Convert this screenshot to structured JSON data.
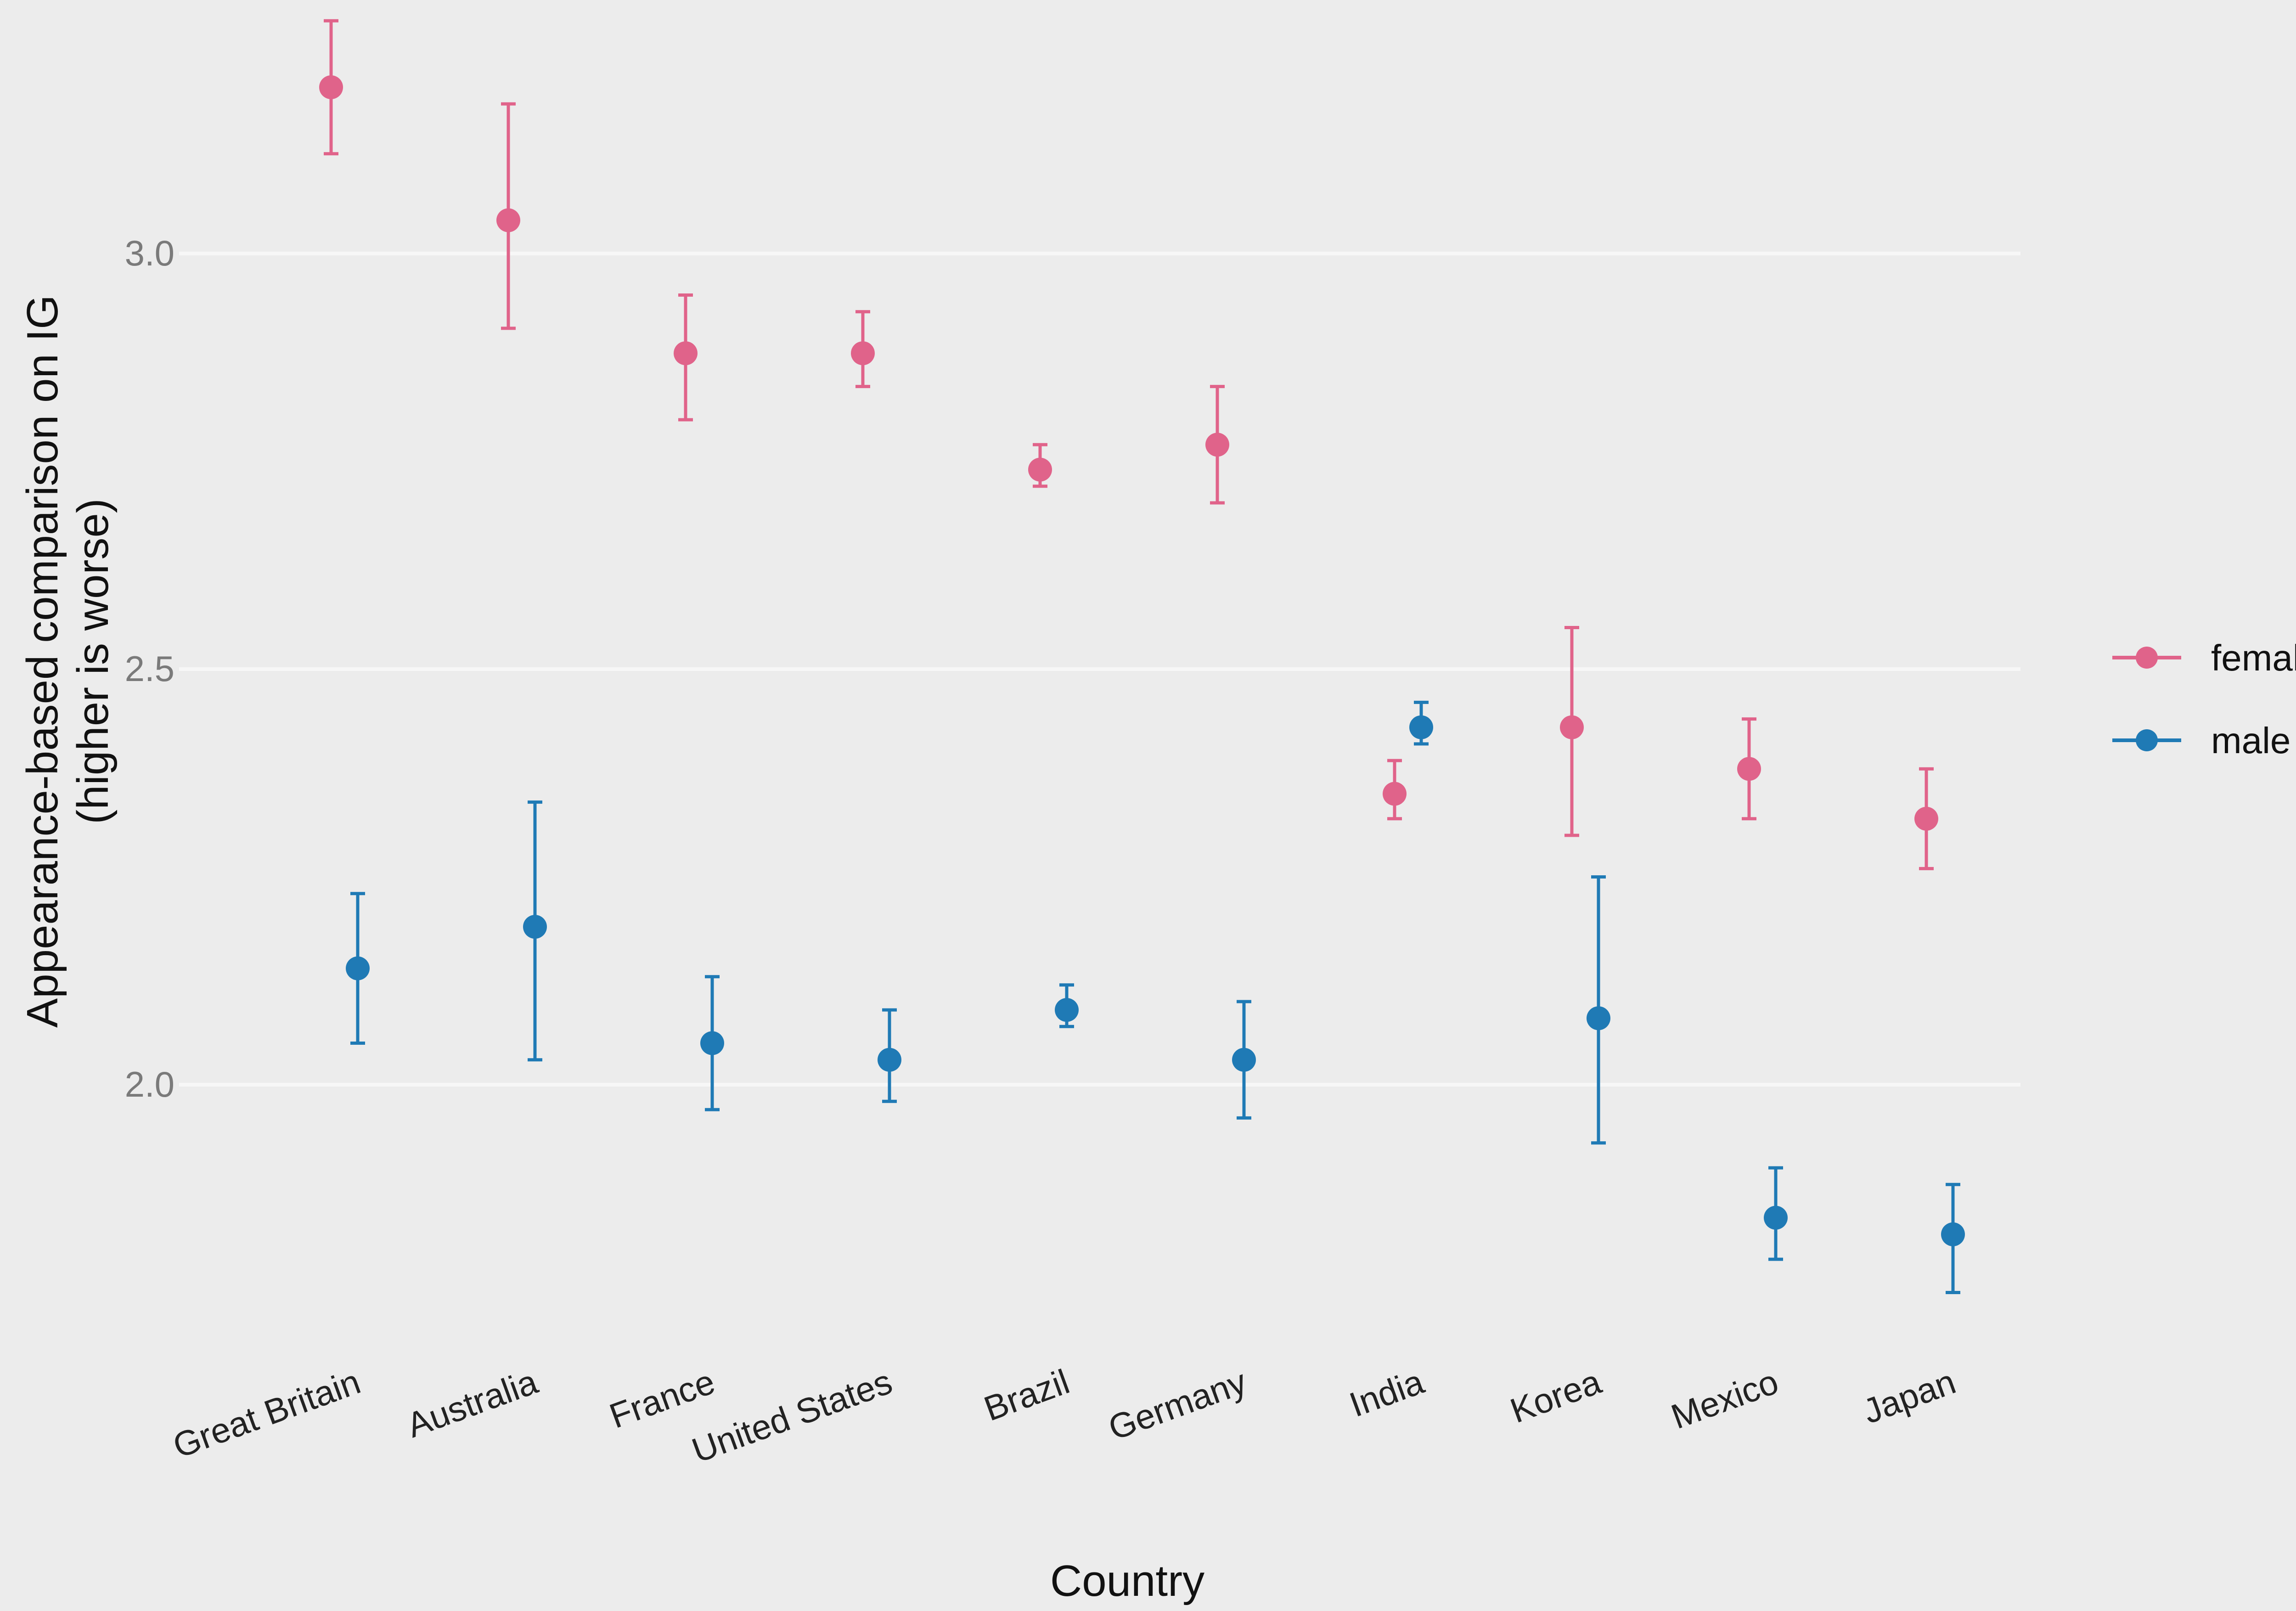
{
  "colors": {
    "background": "#ececec",
    "grid": "#f7f7f7",
    "female": "#e0638a",
    "male": "#1f7ab5"
  },
  "chart_data": {
    "type": "scatter",
    "subtype": "dot-with-error-bars",
    "xlabel": "Country",
    "ylabel_line1": "Appearance-based comparison on IG",
    "ylabel_line2": "(higher is worse)",
    "ylim": [
      1.7,
      3.3
    ],
    "yticks": [
      2.0,
      2.5,
      3.0
    ],
    "ytick_labels": [
      "2.0",
      "2.5",
      "3.0"
    ],
    "grid": true,
    "legend_position": "right",
    "categories": [
      "Great Britain",
      "Australia",
      "France",
      "United States",
      "Brazil",
      "Germany",
      "India",
      "Korea",
      "Mexico",
      "Japan"
    ],
    "series": [
      {
        "name": "female",
        "color": "#e0638a",
        "values": [
          3.2,
          3.04,
          2.88,
          2.88,
          2.74,
          2.77,
          2.35,
          2.43,
          2.38,
          2.32
        ],
        "lower": [
          3.12,
          2.91,
          2.8,
          2.84,
          2.72,
          2.7,
          2.32,
          2.3,
          2.32,
          2.26
        ],
        "upper": [
          3.28,
          3.18,
          2.95,
          2.93,
          2.77,
          2.84,
          2.39,
          2.55,
          2.44,
          2.38
        ]
      },
      {
        "name": "male",
        "color": "#1f7ab5",
        "values": [
          2.14,
          2.19,
          2.05,
          2.03,
          2.09,
          2.03,
          2.43,
          2.08,
          1.84,
          1.82
        ],
        "lower": [
          2.05,
          2.03,
          1.97,
          1.98,
          2.07,
          1.96,
          2.41,
          1.93,
          1.79,
          1.75
        ],
        "upper": [
          2.23,
          2.34,
          2.13,
          2.09,
          2.12,
          2.1,
          2.46,
          2.25,
          1.9,
          1.88
        ]
      }
    ]
  }
}
